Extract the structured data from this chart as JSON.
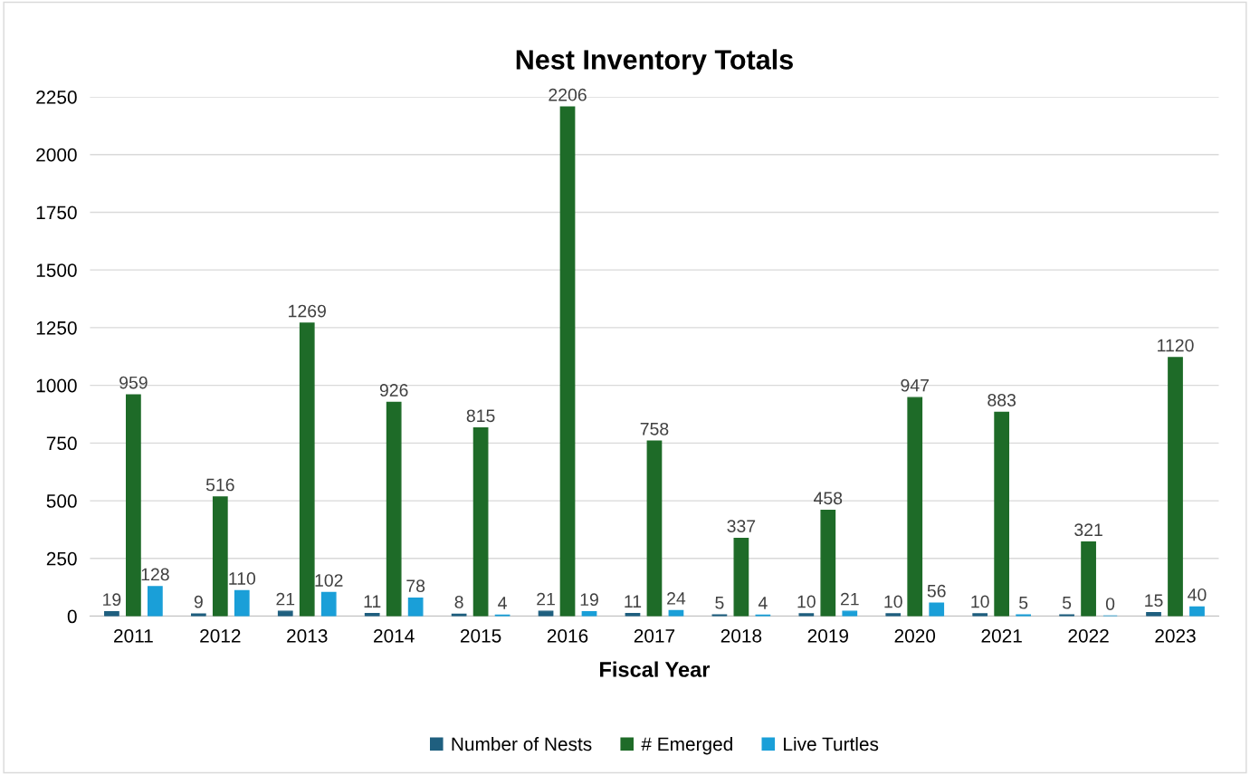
{
  "chart_data": {
    "type": "bar",
    "title": "Nest Inventory Totals",
    "xlabel": "Fiscal Year",
    "categories": [
      "2011",
      "2012",
      "2013",
      "2014",
      "2015",
      "2016",
      "2017",
      "2018",
      "2019",
      "2020",
      "2021",
      "2022",
      "2023"
    ],
    "series": [
      {
        "name": "Number of Nests",
        "color": "#1f5f7f",
        "values": [
          19,
          9,
          21,
          11,
          8,
          21,
          11,
          5,
          10,
          10,
          10,
          5,
          15
        ]
      },
      {
        "name": "# Emerged",
        "color": "#1e6b28",
        "values": [
          959,
          516,
          1269,
          926,
          815,
          2206,
          758,
          337,
          458,
          947,
          883,
          321,
          1120
        ]
      },
      {
        "name": "Live Turtles",
        "color": "#1a9fd8",
        "values": [
          128,
          110,
          102,
          78,
          4,
          19,
          24,
          4,
          21,
          56,
          5,
          0,
          40
        ]
      }
    ],
    "ylim": [
      0,
      2250
    ],
    "yticks": [
      0,
      250,
      500,
      750,
      1000,
      1250,
      1500,
      1750,
      2000,
      2250
    ],
    "grid": "y",
    "legend": "bottom",
    "data_labels": true
  }
}
